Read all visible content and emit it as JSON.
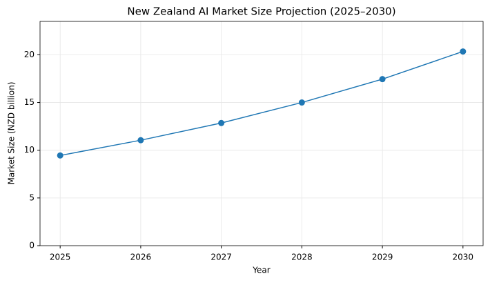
{
  "chart_data": {
    "type": "line",
    "title": "New Zealand AI Market Size Projection (2025–2030)",
    "x_label": "Year",
    "y_label": "Market Size (NZD billion)",
    "x": [
      2025,
      2026,
      2027,
      2028,
      2029,
      2030
    ],
    "series": [
      {
        "name": "Market Size",
        "color": "#1f77b4",
        "values": [
          9.45,
          11.05,
          12.85,
          15.0,
          17.45,
          20.35
        ]
      }
    ],
    "xlim": [
      2024.75,
      2030.25
    ],
    "xticks": [
      2025,
      2026,
      2027,
      2028,
      2029,
      2030
    ],
    "ylim": [
      0,
      23.5
    ],
    "yticks": [
      0,
      5,
      10,
      15,
      20
    ],
    "grid": true,
    "markers": true
  }
}
